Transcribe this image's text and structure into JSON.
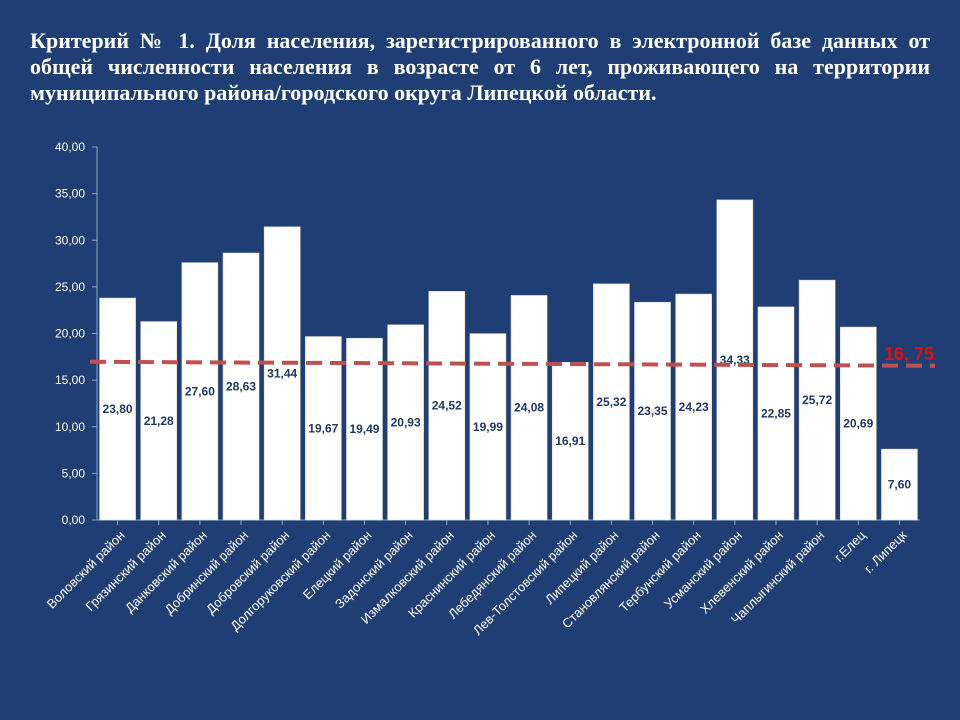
{
  "slide": {
    "title": "Критерий № 1. Доля населения, зарегистрированного в электронной базе данных от общей численности населения в возрасте от 6 лет, проживающего на территории муниципального района/городского округа Липецкой области."
  },
  "chart_data": {
    "type": "bar",
    "title": "",
    "xlabel": "",
    "ylabel": "",
    "ylim": [
      0,
      40
    ],
    "yticks": [
      "0,00",
      "5,00",
      "10,00",
      "15,00",
      "20,00",
      "25,00",
      "30,00",
      "35,00",
      "40,00"
    ],
    "grid": false,
    "bar_color": "#ffffff",
    "categories": [
      "Воловский район",
      "Грязинский район",
      "Данковский район",
      "Добринский район",
      "Добровский район",
      "Долгоруковский район",
      "Елецкий район",
      "Задонский район",
      "Измалковский район",
      "Краснинский район",
      "Лебедянский район",
      "Лев-Толстовский район",
      "Липецкий район",
      "Становлянский район",
      "Тербунский район",
      "Усманский район",
      "Хлевенский район",
      "Чаплыгинский район",
      "г.Елец",
      "г. Липецк"
    ],
    "values": [
      23.8,
      21.28,
      27.6,
      28.63,
      31.44,
      19.67,
      19.49,
      20.93,
      24.52,
      19.99,
      24.08,
      16.91,
      25.32,
      23.35,
      24.23,
      34.33,
      22.85,
      25.72,
      20.69,
      7.6
    ],
    "value_labels": [
      "23,80",
      "21,28",
      "27,60",
      "28,63",
      "31,44",
      "19,67",
      "19,49",
      "20,93",
      "24,52",
      "19,99",
      "24,08",
      "16,91",
      "25,32",
      "23,35",
      "24,23",
      "34,33",
      "22,85",
      "25,72",
      "20,69",
      "7,60"
    ],
    "reference_line": {
      "value": 16.75,
      "label": "16, 75",
      "color": "#c0504d",
      "label_color": "#e01010"
    }
  }
}
